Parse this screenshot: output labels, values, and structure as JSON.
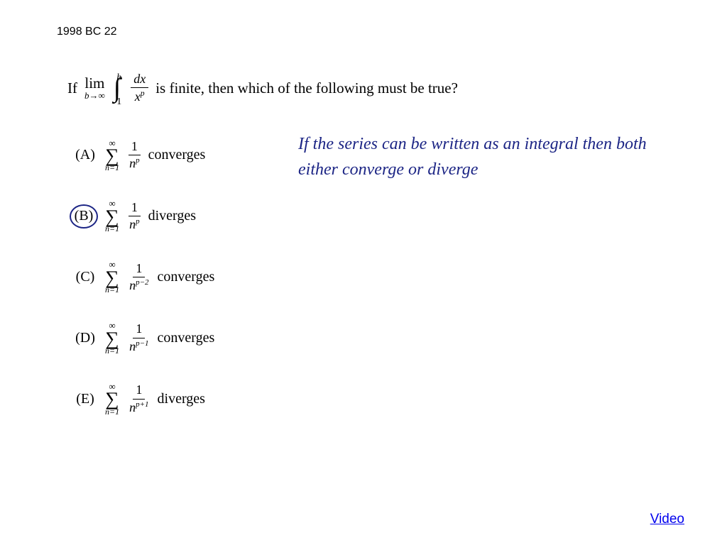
{
  "header": "1998 BC 22",
  "question": {
    "prefix": "If",
    "lim_label": "lim",
    "lim_var": "b→∞",
    "int_upper": "b",
    "int_lower": "1",
    "int_num": "dx",
    "int_den_base": "x",
    "int_den_exp": "p",
    "suffix": "is finite, then which of the following must be true?"
  },
  "options": [
    {
      "label": "(A)",
      "circled": false,
      "exp": "p",
      "verb": "converges"
    },
    {
      "label": "(B)",
      "circled": true,
      "exp": "p",
      "verb": "diverges"
    },
    {
      "label": "(C)",
      "circled": false,
      "exp": "p−2",
      "verb": "converges"
    },
    {
      "label": "(D)",
      "circled": false,
      "exp": "p−1",
      "verb": "converges"
    },
    {
      "label": "(E)",
      "circled": false,
      "exp": "p+1",
      "verb": "diverges"
    }
  ],
  "sigma": {
    "top": "∞",
    "sym": "∑",
    "bot": "n=1",
    "num": "1",
    "den_base": "n"
  },
  "handwritten": "If the series can be written as an integral then both either converge or diverge",
  "video_link": "Video",
  "colors": {
    "text": "#000000",
    "ink": "#1c2585",
    "link": "#0000ee",
    "background": "#ffffff"
  }
}
